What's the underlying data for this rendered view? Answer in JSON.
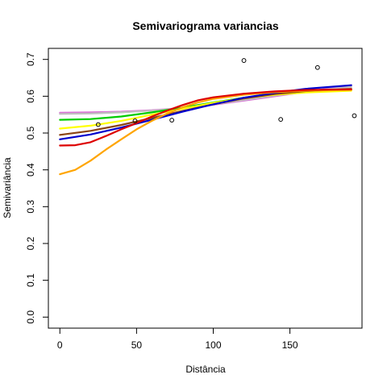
{
  "chart_data": {
    "type": "scatter",
    "title": "Semivariograma variancias",
    "xlabel": "Distância",
    "ylabel": "Semivariância",
    "xlim": [
      -7.5,
      197
    ],
    "ylim": [
      -0.03,
      0.73
    ],
    "x_ticks": [
      0,
      50,
      100,
      150
    ],
    "x_tick_labels": [
      "0",
      "50",
      "100",
      "150"
    ],
    "y_ticks": [
      0.0,
      0.1,
      0.2,
      0.3,
      0.4,
      0.5,
      0.6,
      0.7
    ],
    "y_tick_labels": [
      "0.0",
      "0.1",
      "0.2",
      "0.3",
      "0.4",
      "0.5",
      "0.6",
      "0.7"
    ],
    "grid": false,
    "points": {
      "x": [
        25,
        49,
        73,
        120,
        144,
        168,
        192
      ],
      "y": [
        0.523,
        0.533,
        0.535,
        0.697,
        0.537,
        0.678,
        0.547
      ]
    },
    "series": [
      {
        "color": "#DA70D6",
        "x": [
          0,
          20,
          40,
          60,
          80,
          100,
          120,
          140,
          160,
          190
        ],
        "y": [
          0.555,
          0.556,
          0.558,
          0.562,
          0.568,
          0.577,
          0.588,
          0.6,
          0.612,
          0.63
        ]
      },
      {
        "color": "#C0C0C0",
        "x": [
          0,
          20,
          40,
          60,
          80,
          100,
          120,
          140,
          160,
          190
        ],
        "y": [
          0.552,
          0.553,
          0.556,
          0.561,
          0.568,
          0.578,
          0.59,
          0.602,
          0.613,
          0.625
        ]
      },
      {
        "color": "#00CC00",
        "x": [
          0,
          20,
          40,
          60,
          80,
          100,
          120,
          140,
          160,
          190
        ],
        "y": [
          0.536,
          0.538,
          0.545,
          0.556,
          0.569,
          0.583,
          0.596,
          0.606,
          0.613,
          0.618
        ]
      },
      {
        "color": "#FFFF00",
        "x": [
          0,
          20,
          40,
          60,
          80,
          100,
          120,
          140,
          160,
          190
        ],
        "y": [
          0.512,
          0.52,
          0.533,
          0.55,
          0.566,
          0.582,
          0.595,
          0.604,
          0.61,
          0.615
        ]
      },
      {
        "color": "#8B4513",
        "x": [
          0,
          20,
          40,
          60,
          80,
          100,
          120,
          140,
          160,
          190
        ],
        "y": [
          0.495,
          0.506,
          0.522,
          0.541,
          0.56,
          0.578,
          0.594,
          0.606,
          0.614,
          0.62
        ]
      },
      {
        "color": "#0000CD",
        "x": [
          0,
          20,
          40,
          60,
          80,
          100,
          120,
          140,
          160,
          190
        ],
        "y": [
          0.483,
          0.496,
          0.515,
          0.536,
          0.558,
          0.578,
          0.596,
          0.609,
          0.62,
          0.63
        ]
      },
      {
        "color": "#FFA500",
        "x": [
          0,
          10,
          20,
          30,
          40,
          50,
          60,
          70,
          80,
          90,
          100,
          120,
          140,
          160,
          190
        ],
        "y": [
          0.388,
          0.4,
          0.425,
          0.455,
          0.483,
          0.51,
          0.533,
          0.553,
          0.57,
          0.583,
          0.593,
          0.604,
          0.611,
          0.615,
          0.617
        ]
      },
      {
        "color": "#DD0000",
        "x": [
          0,
          10,
          20,
          30,
          40,
          50,
          60,
          70,
          80,
          90,
          100,
          120,
          140,
          160,
          190
        ],
        "y": [
          0.466,
          0.467,
          0.475,
          0.492,
          0.51,
          0.527,
          0.545,
          0.561,
          0.576,
          0.589,
          0.597,
          0.607,
          0.613,
          0.617,
          0.619
        ]
      }
    ]
  }
}
